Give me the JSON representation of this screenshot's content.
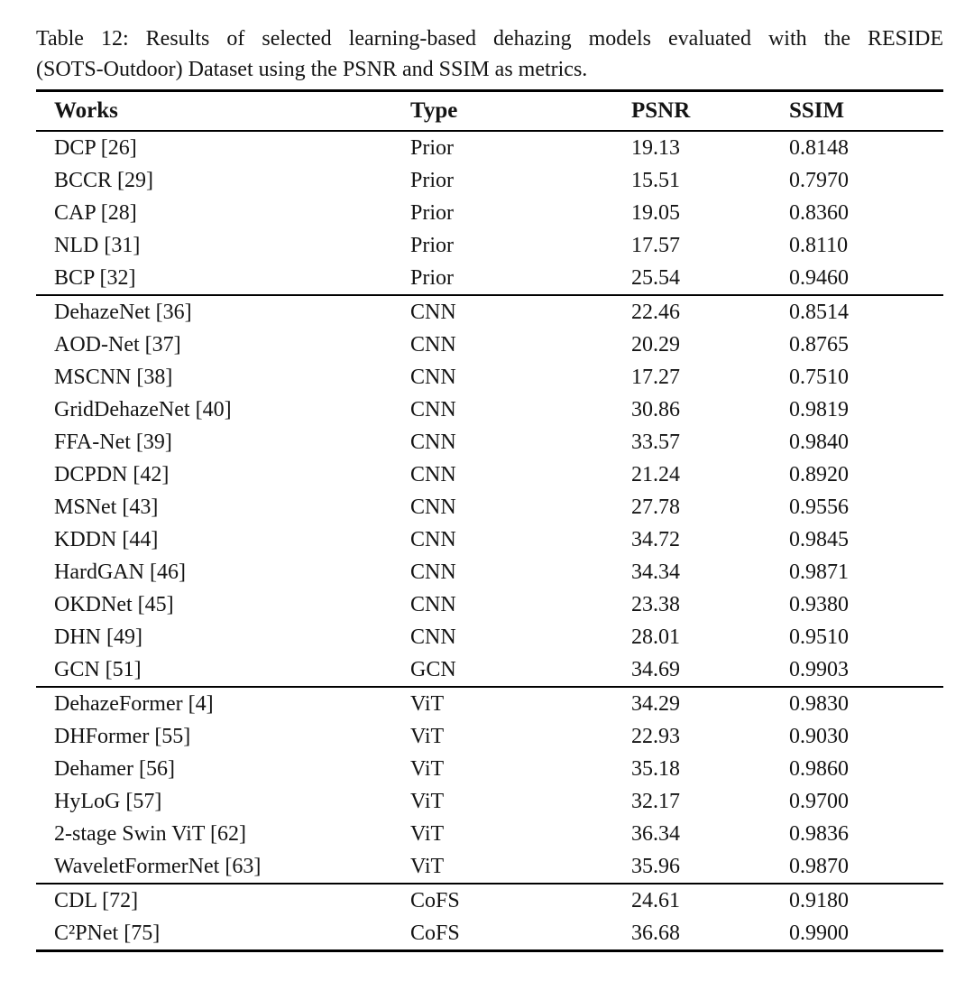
{
  "caption": {
    "line1": "Table 12: Results of selected learning-based dehazing models evaluated with the RESIDE",
    "line2": "(SOTS-Outdoor) Dataset using the PSNR and SSIM as metrics."
  },
  "colors": {
    "background": "#ffffff",
    "text": "#141414",
    "rule": "#000000"
  },
  "table": {
    "columns": [
      "Works",
      "Type",
      "PSNR",
      "SSIM"
    ],
    "sections": [
      {
        "name": "prior",
        "rows": [
          {
            "work": "DCP [26]",
            "type": "Prior",
            "psnr": "19.13",
            "ssim": "0.8148"
          },
          {
            "work": "BCCR [29]",
            "type": "Prior",
            "psnr": "15.51",
            "ssim": "0.7970"
          },
          {
            "work": "CAP [28]",
            "type": "Prior",
            "psnr": "19.05",
            "ssim": "0.8360"
          },
          {
            "work": "NLD [31]",
            "type": "Prior",
            "psnr": "17.57",
            "ssim": "0.8110"
          },
          {
            "work": "BCP [32]",
            "type": "Prior",
            "psnr": "25.54",
            "ssim": "0.9460"
          }
        ]
      },
      {
        "name": "cnn-gcn",
        "rows": [
          {
            "work": "DehazeNet [36]",
            "type": "CNN",
            "psnr": "22.46",
            "ssim": "0.8514"
          },
          {
            "work": "AOD-Net [37]",
            "type": "CNN",
            "psnr": "20.29",
            "ssim": "0.8765"
          },
          {
            "work": "MSCNN [38]",
            "type": "CNN",
            "psnr": "17.27",
            "ssim": "0.7510"
          },
          {
            "work": "GridDehazeNet [40]",
            "type": "CNN",
            "psnr": "30.86",
            "ssim": "0.9819"
          },
          {
            "work": "FFA-Net [39]",
            "type": "CNN",
            "psnr": "33.57",
            "ssim": "0.9840"
          },
          {
            "work": "DCPDN [42]",
            "type": "CNN",
            "psnr": "21.24",
            "ssim": "0.8920"
          },
          {
            "work": "MSNet [43]",
            "type": "CNN",
            "psnr": "27.78",
            "ssim": "0.9556"
          },
          {
            "work": "KDDN [44]",
            "type": "CNN",
            "psnr": "34.72",
            "ssim": "0.9845"
          },
          {
            "work": "HardGAN [46]",
            "type": "CNN",
            "psnr": "34.34",
            "ssim": "0.9871"
          },
          {
            "work": "OKDNet [45]",
            "type": "CNN",
            "psnr": "23.38",
            "ssim": "0.9380"
          },
          {
            "work": "DHN [49]",
            "type": "CNN",
            "psnr": "28.01",
            "ssim": "0.9510"
          },
          {
            "work": "GCN [51]",
            "type": "GCN",
            "psnr": "34.69",
            "ssim": "0.9903"
          }
        ]
      },
      {
        "name": "vit",
        "rows": [
          {
            "work": "DehazeFormer [4]",
            "type": "ViT",
            "psnr": "34.29",
            "ssim": "0.9830"
          },
          {
            "work": "DHFormer [55]",
            "type": "ViT",
            "psnr": "22.93",
            "ssim": "0.9030"
          },
          {
            "work": "Dehamer [56]",
            "type": "ViT",
            "psnr": "35.18",
            "ssim": "0.9860"
          },
          {
            "work": "HyLoG [57]",
            "type": "ViT",
            "psnr": "32.17",
            "ssim": "0.9700"
          },
          {
            "work": "2-stage Swin ViT [62]",
            "type": "ViT",
            "psnr": "36.34",
            "ssim": "0.9836"
          },
          {
            "work": "WaveletFormerNet [63]",
            "type": "ViT",
            "psnr": "35.96",
            "ssim": "0.9870"
          }
        ]
      },
      {
        "name": "cofs",
        "rows": [
          {
            "work": "CDL [72]",
            "type": "CoFS",
            "psnr": "24.61",
            "ssim": "0.9180"
          },
          {
            "work": "C²PNet [75]",
            "type": "CoFS",
            "psnr": "36.68",
            "ssim": "0.9900"
          }
        ]
      }
    ]
  }
}
